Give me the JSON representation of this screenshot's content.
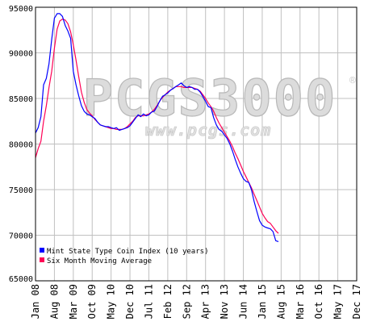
{
  "watermark": {
    "logo_text": "PCGS3000",
    "registered": "®",
    "url": "www.pcgs.com"
  },
  "chart_data": {
    "type": "line",
    "ylim": [
      65000,
      95000
    ],
    "yticks": [
      65000,
      70000,
      75000,
      80000,
      85000,
      90000,
      95000
    ],
    "xticks": [
      "Jan 08",
      "Aug 08",
      "Mar 09",
      "Oct 09",
      "May 10",
      "Dec 10",
      "Jul 11",
      "Feb 12",
      "Sep 12",
      "Apr 13",
      "Nov 13",
      "Jun 14",
      "Jan 15",
      "Aug 15",
      "Mar 16",
      "Oct 16",
      "May 17",
      "Dec 17"
    ],
    "x_range": [
      0,
      119
    ],
    "grid": true,
    "legend_position": "bottom-left",
    "colors": {
      "grid": "#c0c0c0",
      "plot_border": "#000000",
      "watermark": "#dcdcdc"
    },
    "series": [
      {
        "name": "Mint State Type Coin Index (10 years)",
        "color": "#0000ff",
        "points": [
          [
            0,
            81200
          ],
          [
            1,
            81800
          ],
          [
            2,
            83000
          ],
          [
            3,
            86500
          ],
          [
            4,
            87200
          ],
          [
            5,
            88800
          ],
          [
            6,
            91500
          ],
          [
            7,
            93800
          ],
          [
            8,
            94300
          ],
          [
            9,
            94300
          ],
          [
            10,
            94000
          ],
          [
            11,
            93000
          ],
          [
            12,
            92400
          ],
          [
            13,
            91600
          ],
          [
            14,
            88000
          ],
          [
            15,
            86500
          ],
          [
            16,
            85300
          ],
          [
            17,
            84200
          ],
          [
            18,
            83600
          ],
          [
            19,
            83300
          ],
          [
            20,
            83200
          ],
          [
            21,
            83000
          ],
          [
            22,
            82800
          ],
          [
            23,
            82400
          ],
          [
            24,
            82100
          ],
          [
            25,
            82000
          ],
          [
            26,
            81900
          ],
          [
            27,
            81900
          ],
          [
            28,
            81800
          ],
          [
            29,
            81700
          ],
          [
            30,
            81800
          ],
          [
            31,
            81500
          ],
          [
            32,
            81600
          ],
          [
            33,
            81700
          ],
          [
            34,
            81800
          ],
          [
            35,
            82000
          ],
          [
            36,
            82400
          ],
          [
            37,
            82800
          ],
          [
            38,
            83200
          ],
          [
            39,
            83000
          ],
          [
            40,
            83300
          ],
          [
            41,
            83100
          ],
          [
            42,
            83200
          ],
          [
            43,
            83500
          ],
          [
            44,
            83600
          ],
          [
            45,
            84100
          ],
          [
            46,
            84700
          ],
          [
            47,
            85200
          ],
          [
            48,
            85400
          ],
          [
            49,
            85600
          ],
          [
            50,
            85900
          ],
          [
            51,
            86100
          ],
          [
            52,
            86300
          ],
          [
            53,
            86500
          ],
          [
            54,
            86700
          ],
          [
            55,
            86400
          ],
          [
            56,
            86200
          ],
          [
            57,
            86300
          ],
          [
            58,
            86200
          ],
          [
            59,
            86000
          ],
          [
            60,
            86000
          ],
          [
            61,
            85700
          ],
          [
            62,
            85200
          ],
          [
            63,
            84700
          ],
          [
            64,
            84100
          ],
          [
            65,
            84000
          ],
          [
            66,
            82900
          ],
          [
            67,
            82100
          ],
          [
            68,
            81600
          ],
          [
            69,
            81400
          ],
          [
            70,
            81000
          ],
          [
            71,
            80600
          ],
          [
            72,
            80000
          ],
          [
            73,
            79200
          ],
          [
            74,
            78300
          ],
          [
            75,
            77500
          ],
          [
            76,
            76800
          ],
          [
            77,
            76200
          ],
          [
            78,
            75900
          ],
          [
            79,
            75800
          ],
          [
            80,
            75000
          ],
          [
            81,
            73700
          ],
          [
            82,
            72600
          ],
          [
            83,
            71600
          ],
          [
            84,
            71100
          ],
          [
            85,
            70900
          ],
          [
            86,
            70800
          ],
          [
            87,
            70700
          ],
          [
            88,
            70400
          ],
          [
            89,
            69400
          ],
          [
            90,
            69300
          ]
        ]
      },
      {
        "name": "Six Month Moving Average",
        "color": "#ff0055",
        "points": [
          [
            0,
            78500
          ],
          [
            1,
            79500
          ],
          [
            2,
            80300
          ],
          [
            3,
            82500
          ],
          [
            4,
            84200
          ],
          [
            5,
            86200
          ],
          [
            6,
            88000
          ],
          [
            7,
            90500
          ],
          [
            8,
            92600
          ],
          [
            9,
            93500
          ],
          [
            10,
            93700
          ],
          [
            11,
            93600
          ],
          [
            12,
            93200
          ],
          [
            13,
            92300
          ],
          [
            14,
            90900
          ],
          [
            15,
            89200
          ],
          [
            16,
            87400
          ],
          [
            17,
            85700
          ],
          [
            18,
            84600
          ],
          [
            19,
            83800
          ],
          [
            20,
            83400
          ],
          [
            21,
            83100
          ],
          [
            22,
            82700
          ],
          [
            23,
            82400
          ],
          [
            24,
            82100
          ],
          [
            25,
            82000
          ],
          [
            26,
            81900
          ],
          [
            27,
            81800
          ],
          [
            28,
            81700
          ],
          [
            29,
            81700
          ],
          [
            30,
            81600
          ],
          [
            31,
            81600
          ],
          [
            32,
            81600
          ],
          [
            33,
            81700
          ],
          [
            34,
            81900
          ],
          [
            35,
            82200
          ],
          [
            36,
            82500
          ],
          [
            37,
            82900
          ],
          [
            38,
            83100
          ],
          [
            39,
            83100
          ],
          [
            40,
            83100
          ],
          [
            41,
            83200
          ],
          [
            42,
            83300
          ],
          [
            43,
            83500
          ],
          [
            44,
            83800
          ],
          [
            45,
            84200
          ],
          [
            46,
            84700
          ],
          [
            47,
            85100
          ],
          [
            48,
            85400
          ],
          [
            49,
            85700
          ],
          [
            50,
            85900
          ],
          [
            51,
            86100
          ],
          [
            52,
            86300
          ],
          [
            53,
            86300
          ],
          [
            54,
            86300
          ],
          [
            55,
            86200
          ],
          [
            56,
            86200
          ],
          [
            57,
            86200
          ],
          [
            58,
            86200
          ],
          [
            59,
            86100
          ],
          [
            60,
            86000
          ],
          [
            61,
            85800
          ],
          [
            62,
            85400
          ],
          [
            63,
            85000
          ],
          [
            64,
            84500
          ],
          [
            65,
            84100
          ],
          [
            66,
            83600
          ],
          [
            67,
            82900
          ],
          [
            68,
            82300
          ],
          [
            69,
            81800
          ],
          [
            70,
            81300
          ],
          [
            71,
            80800
          ],
          [
            72,
            80300
          ],
          [
            73,
            79700
          ],
          [
            74,
            79000
          ],
          [
            75,
            78400
          ],
          [
            76,
            77700
          ],
          [
            77,
            77000
          ],
          [
            78,
            76400
          ],
          [
            79,
            75800
          ],
          [
            80,
            75200
          ],
          [
            81,
            74500
          ],
          [
            82,
            73800
          ],
          [
            83,
            73100
          ],
          [
            84,
            72400
          ],
          [
            85,
            71900
          ],
          [
            86,
            71500
          ],
          [
            87,
            71300
          ],
          [
            88,
            70900
          ],
          [
            89,
            70500
          ],
          [
            90,
            70200
          ]
        ]
      }
    ]
  }
}
